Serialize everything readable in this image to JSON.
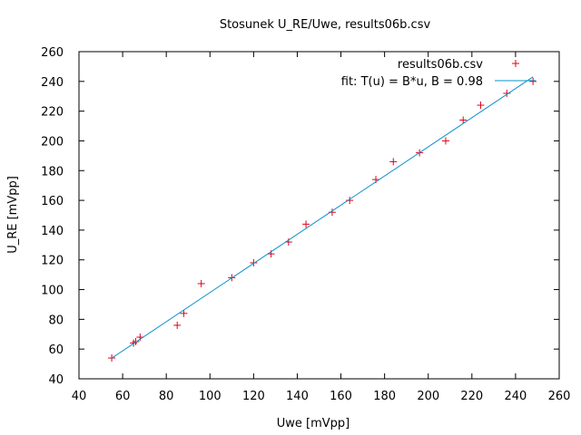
{
  "chart_data": {
    "type": "scatter",
    "title": "Stosunek U_RE/Uwe, results06b.csv",
    "xlabel": "Uwe [mVpp]",
    "ylabel": "U_RE [mVpp]",
    "xlim": [
      40,
      260
    ],
    "ylim": [
      40,
      260
    ],
    "xticks": [
      40,
      60,
      80,
      100,
      120,
      140,
      160,
      180,
      200,
      220,
      240,
      260
    ],
    "yticks": [
      40,
      60,
      80,
      100,
      120,
      140,
      160,
      180,
      200,
      220,
      240,
      260
    ],
    "grid": false,
    "legend_position": "top-right",
    "series": [
      {
        "name": "results06b.csv",
        "kind": "points",
        "marker": "+",
        "color": "#e0001a",
        "points": [
          [
            55,
            54
          ],
          [
            65,
            64
          ],
          [
            66,
            65
          ],
          [
            68,
            68
          ],
          [
            85,
            76
          ],
          [
            88,
            84
          ],
          [
            96,
            104
          ],
          [
            110,
            108
          ],
          [
            120,
            118
          ],
          [
            128,
            124
          ],
          [
            136,
            132
          ],
          [
            144,
            144
          ],
          [
            156,
            152
          ],
          [
            164,
            160
          ],
          [
            176,
            174
          ],
          [
            184,
            186
          ],
          [
            196,
            192
          ],
          [
            208,
            200
          ],
          [
            216,
            214
          ],
          [
            224,
            224
          ],
          [
            236,
            232
          ],
          [
            248,
            240
          ]
        ]
      },
      {
        "name": "fit: T(u) = B*u, B = 0.98",
        "kind": "line",
        "color": "#0a90c8",
        "B": 0.98,
        "x": [
          55,
          248
        ]
      }
    ]
  }
}
